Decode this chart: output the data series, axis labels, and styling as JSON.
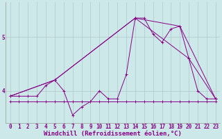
{
  "xlabel": "Windchill (Refroidissement éolien,°C)",
  "background_color": "#cce8e8",
  "grid_color": "#b0c8c8",
  "line_color": "#880088",
  "x_hours": [
    0,
    1,
    2,
    3,
    4,
    5,
    6,
    7,
    8,
    9,
    10,
    11,
    12,
    13,
    14,
    15,
    16,
    17,
    18,
    19,
    20,
    21,
    22,
    23
  ],
  "series1": [
    3.9,
    3.9,
    3.9,
    3.9,
    4.1,
    4.2,
    4.0,
    3.55,
    3.7,
    3.8,
    4.0,
    3.85,
    3.85,
    4.3,
    5.35,
    5.35,
    5.05,
    4.9,
    5.15,
    5.2,
    4.6,
    4.0,
    3.85,
    3.85
  ],
  "series2": [
    3.8,
    3.8,
    3.8,
    3.8,
    3.8,
    3.8,
    3.8,
    3.8,
    3.8,
    3.8,
    3.8,
    3.8,
    3.8,
    3.8,
    3.8,
    3.8,
    3.8,
    3.8,
    3.8,
    3.8,
    3.8,
    3.8,
    3.8,
    3.8
  ],
  "series3_x": [
    0,
    5,
    14,
    19,
    23
  ],
  "series3_y": [
    3.9,
    4.2,
    5.35,
    5.2,
    3.85
  ],
  "series4_x": [
    0,
    5,
    14,
    20,
    23
  ],
  "series4_y": [
    3.9,
    4.2,
    5.35,
    4.6,
    3.85
  ],
  "ylim": [
    3.4,
    5.65
  ],
  "yticks": [
    4,
    5
  ],
  "ytick_labels": [
    "4",
    "5"
  ],
  "xtick_labels": [
    "0",
    "1",
    "2",
    "3",
    "4",
    "5",
    "6",
    "7",
    "8",
    "9",
    "10",
    "11",
    "12",
    "13",
    "14",
    "15",
    "16",
    "17",
    "18",
    "19",
    "20",
    "21",
    "22",
    "23"
  ],
  "label_fontsize": 6.5,
  "tick_fontsize": 5.5
}
